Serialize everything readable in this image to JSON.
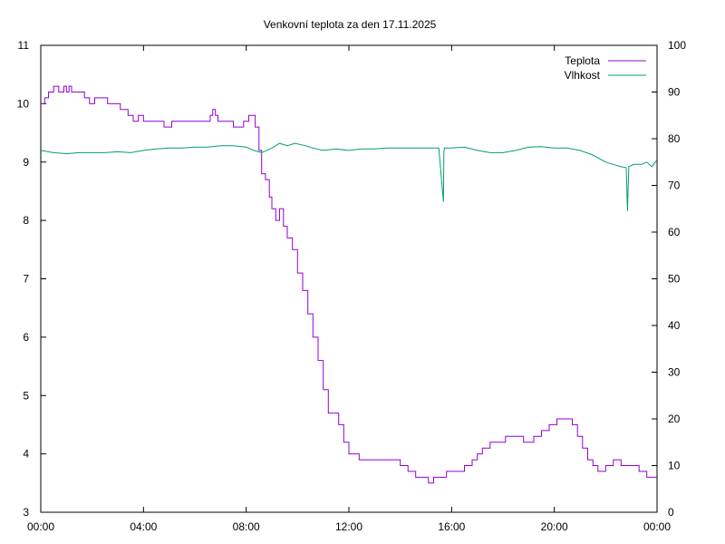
{
  "chart_data": {
    "type": "line",
    "title": "Venkovní teplota za den 17.11.2025",
    "xlabel": "",
    "ylabel": "",
    "y2label": "",
    "x_unit": "hours",
    "xlim": [
      0,
      24
    ],
    "ylim": [
      3,
      11
    ],
    "y2lim": [
      0,
      100
    ],
    "x_ticks": [
      {
        "value": 0,
        "label": "00:00"
      },
      {
        "value": 4,
        "label": "04:00"
      },
      {
        "value": 8,
        "label": "08:00"
      },
      {
        "value": 12,
        "label": "12:00"
      },
      {
        "value": 16,
        "label": "16:00"
      },
      {
        "value": 20,
        "label": "20:00"
      },
      {
        "value": 24,
        "label": "00:00"
      }
    ],
    "y_ticks": [
      {
        "value": 3,
        "label": "3"
      },
      {
        "value": 4,
        "label": "4"
      },
      {
        "value": 5,
        "label": "5"
      },
      {
        "value": 6,
        "label": "6"
      },
      {
        "value": 7,
        "label": "7"
      },
      {
        "value": 8,
        "label": "8"
      },
      {
        "value": 9,
        "label": "9"
      },
      {
        "value": 10,
        "label": "10"
      },
      {
        "value": 11,
        "label": "11"
      }
    ],
    "y2_ticks": [
      {
        "value": 0,
        "label": "0"
      },
      {
        "value": 10,
        "label": "10"
      },
      {
        "value": 20,
        "label": "20"
      },
      {
        "value": 30,
        "label": "30"
      },
      {
        "value": 40,
        "label": "40"
      },
      {
        "value": 50,
        "label": "50"
      },
      {
        "value": 60,
        "label": "60"
      },
      {
        "value": 70,
        "label": "70"
      },
      {
        "value": 80,
        "label": "80"
      },
      {
        "value": 90,
        "label": "90"
      },
      {
        "value": 100,
        "label": "100"
      }
    ],
    "grid": false,
    "legend_position": "top-right",
    "series": [
      {
        "name": "Teplota",
        "axis": "left",
        "color": "#9400d3",
        "step": true,
        "x": [
          0.0,
          0.15,
          0.3,
          0.5,
          0.7,
          0.9,
          1.0,
          1.1,
          1.2,
          1.4,
          1.7,
          1.9,
          2.1,
          2.3,
          2.6,
          3.1,
          3.4,
          3.6,
          3.8,
          4.0,
          4.8,
          5.1,
          5.5,
          6.2,
          6.6,
          6.7,
          6.8,
          6.9,
          7.0,
          7.5,
          7.9,
          8.1,
          8.2,
          8.35,
          8.5,
          8.6,
          8.75,
          8.9,
          9.0,
          9.15,
          9.3,
          9.45,
          9.6,
          9.8,
          10.0,
          10.2,
          10.4,
          10.6,
          10.8,
          11.0,
          11.2,
          11.4,
          11.6,
          11.8,
          12.0,
          12.2,
          12.4,
          12.6,
          12.8,
          13.0,
          13.5,
          14.0,
          14.3,
          14.6,
          14.9,
          15.1,
          15.3,
          15.5,
          15.8,
          16.1,
          16.5,
          16.8,
          17.0,
          17.2,
          17.5,
          17.8,
          18.1,
          18.5,
          18.8,
          19.2,
          19.5,
          19.8,
          20.1,
          20.4,
          20.7,
          20.9,
          21.1,
          21.3,
          21.5,
          21.7,
          22.0,
          22.3,
          22.6,
          23.0,
          23.3,
          23.6,
          24.0
        ],
        "values": [
          10.0,
          10.1,
          10.2,
          10.3,
          10.2,
          10.3,
          10.2,
          10.3,
          10.2,
          10.2,
          10.1,
          10.0,
          10.1,
          10.1,
          10.0,
          9.9,
          9.8,
          9.7,
          9.8,
          9.7,
          9.6,
          9.7,
          9.7,
          9.7,
          9.8,
          9.9,
          9.8,
          9.7,
          9.7,
          9.6,
          9.7,
          9.8,
          9.8,
          9.6,
          9.2,
          8.8,
          8.7,
          8.4,
          8.2,
          8.0,
          8.2,
          7.9,
          7.7,
          7.5,
          7.1,
          6.8,
          6.4,
          6.0,
          5.6,
          5.1,
          4.7,
          4.7,
          4.5,
          4.2,
          4.0,
          4.0,
          3.9,
          3.9,
          3.9,
          3.9,
          3.9,
          3.8,
          3.7,
          3.6,
          3.6,
          3.5,
          3.6,
          3.6,
          3.7,
          3.7,
          3.8,
          3.9,
          4.0,
          4.1,
          4.2,
          4.2,
          4.3,
          4.3,
          4.2,
          4.3,
          4.4,
          4.5,
          4.6,
          4.6,
          4.5,
          4.3,
          4.1,
          3.9,
          3.8,
          3.7,
          3.8,
          3.9,
          3.8,
          3.8,
          3.7,
          3.6,
          3.6
        ]
      },
      {
        "name": "Vlhkost",
        "axis": "right",
        "color": "#009e73",
        "step": false,
        "x": [
          0.0,
          0.5,
          1.0,
          1.5,
          2.0,
          2.5,
          3.0,
          3.5,
          4.0,
          4.5,
          5.0,
          5.5,
          6.0,
          6.5,
          7.0,
          7.5,
          8.0,
          8.3,
          8.6,
          8.8,
          9.0,
          9.3,
          9.6,
          9.9,
          10.3,
          10.6,
          11.0,
          11.5,
          12.0,
          12.5,
          13.0,
          13.5,
          14.0,
          14.5,
          15.0,
          15.5,
          15.68,
          15.7,
          15.72,
          16.0,
          16.5,
          17.0,
          17.5,
          18.0,
          18.5,
          19.0,
          19.5,
          20.0,
          20.5,
          21.0,
          21.5,
          22.0,
          22.3,
          22.6,
          22.8,
          22.85,
          22.9,
          23.1,
          23.4,
          23.6,
          23.8,
          24.0
        ],
        "values": [
          77.5,
          77.0,
          76.8,
          77.0,
          77.0,
          77.0,
          77.2,
          77.0,
          77.5,
          77.8,
          78.0,
          78.0,
          78.2,
          78.2,
          78.5,
          78.5,
          78.2,
          77.5,
          77.0,
          77.5,
          78.0,
          79.0,
          78.5,
          79.0,
          78.5,
          78.0,
          77.5,
          77.8,
          77.5,
          77.8,
          77.8,
          78.0,
          78.0,
          78.0,
          78.0,
          78.0,
          66.5,
          77.0,
          78.0,
          78.0,
          78.2,
          77.5,
          77.0,
          77.0,
          77.5,
          78.2,
          78.3,
          78.0,
          78.0,
          77.5,
          76.5,
          75.0,
          74.5,
          74.0,
          73.8,
          64.5,
          74.0,
          74.5,
          74.5,
          75.0,
          74.0,
          75.5
        ]
      }
    ]
  }
}
